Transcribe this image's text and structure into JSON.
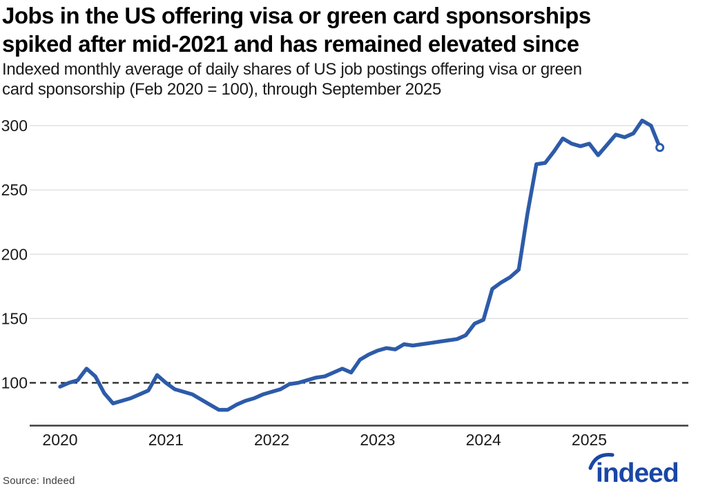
{
  "title_lines": [
    "Jobs in the US offering visa or green card sponsorships",
    "spiked after mid-2021 and has remained elevated since"
  ],
  "subtitle_lines": [
    "Indexed monthly average of daily shares of US job postings offering visa or green",
    "card sponsorship (Feb 2020 = 100), through September 2025"
  ],
  "footer": {
    "source": "Source: Indeed",
    "logo_text": "indeed",
    "logo_color": "#1a47a5"
  },
  "chart_data": {
    "type": "line",
    "title": "Jobs in the US offering visa or green card sponsorships spiked after mid-2021 and has remained elevated since",
    "subtitle": "Indexed monthly average of daily shares of US job postings offering visa or green card sponsorship (Feb 2020 = 100), through September 2025",
    "xlabel": "",
    "ylabel": "",
    "x_ticks": [
      "2020",
      "2021",
      "2022",
      "2023",
      "2024",
      "2025"
    ],
    "y_ticks": [
      300,
      250,
      200,
      150,
      100
    ],
    "ylim": [
      70,
      312
    ],
    "grid": "horizontal-light",
    "legend": "none",
    "baseline": {
      "value": 100,
      "style": "dashed-black",
      "meaning": "Feb 2020 = 100"
    },
    "line_color": "#2d5ba9",
    "last_point_marker": "open-circle",
    "series": [
      {
        "name": "Indexed share of US job postings offering visa or green card sponsorship",
        "frequency": "monthly",
        "start_month": "2020-01",
        "end_month": "2025-09",
        "values": [
          97,
          100,
          102,
          111,
          105,
          92,
          84,
          86,
          88,
          91,
          94,
          106,
          100,
          95,
          93,
          91,
          87,
          83,
          79,
          79,
          83,
          86,
          88,
          91,
          93,
          95,
          99,
          100,
          102,
          104,
          105,
          108,
          111,
          108,
          118,
          122,
          125,
          127,
          126,
          130,
          129,
          130,
          131,
          132,
          133,
          134,
          137,
          146,
          149,
          173,
          178,
          182,
          188,
          232,
          270,
          271,
          280,
          290,
          286,
          284,
          286,
          277,
          285,
          293,
          291,
          294,
          304,
          300,
          283
        ]
      }
    ]
  }
}
